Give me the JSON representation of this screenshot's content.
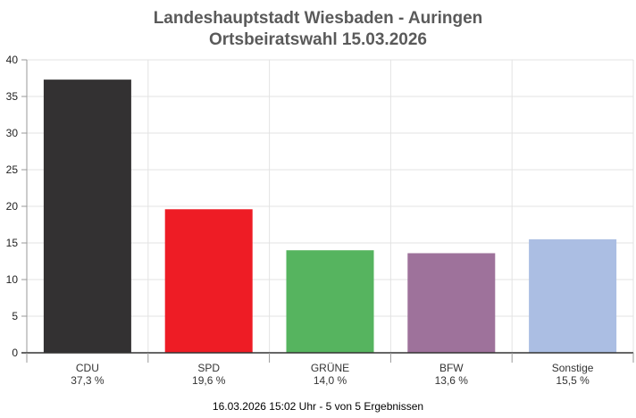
{
  "chart_data": {
    "type": "bar",
    "title": "Landeshauptstadt Wiesbaden - Auringen",
    "subtitle": "Ortsbeiratswahl 15.03.2026",
    "categories": [
      "CDU",
      "SPD",
      "GRÜNE",
      "BFW",
      "Sonstige"
    ],
    "value_labels": [
      "37,3 %",
      "19,6 %",
      "14,0 %",
      "13,6 %",
      "15,5 %"
    ],
    "values": [
      37.3,
      19.6,
      14.0,
      13.6,
      15.5
    ],
    "colors": [
      "#333132",
      "#ee1c25",
      "#56b45f",
      "#9e729b",
      "#abbee3"
    ],
    "ylim": [
      0,
      40
    ],
    "yticks": [
      0,
      5,
      10,
      15,
      20,
      25,
      30,
      35,
      40
    ],
    "grid": true,
    "xlabel": "",
    "ylabel": ""
  },
  "footer": "16.03.2026 15:02 Uhr - 5 von 5 Ergebnissen"
}
